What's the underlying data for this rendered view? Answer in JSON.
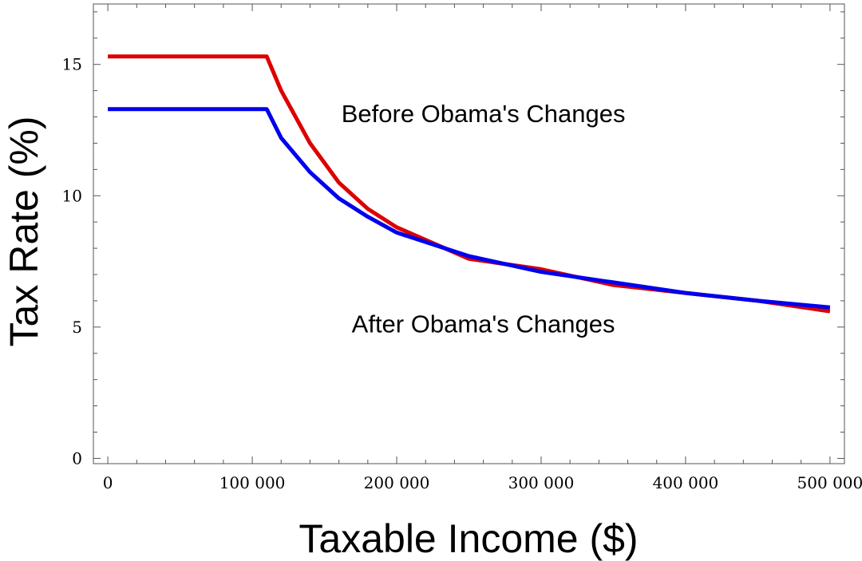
{
  "chart_data": {
    "type": "line",
    "xlabel": "Taxable Income ($)",
    "ylabel": "Tax Rate (%)",
    "xlim": [
      -10000,
      510000
    ],
    "ylim": [
      -0.2,
      17.3
    ],
    "x_ticks": [
      0,
      100000,
      200000,
      300000,
      400000,
      500000
    ],
    "x_tick_labels": [
      "0",
      "100 000",
      "200 000",
      "300 000",
      "400 000",
      "500 000"
    ],
    "y_ticks": [
      0,
      5,
      10,
      15
    ],
    "y_tick_labels": [
      "0",
      "5",
      "10",
      "15"
    ],
    "grid": false,
    "series": [
      {
        "color": "#dd0000",
        "x": [
          0,
          110000,
          120000,
          140000,
          160000,
          180000,
          200000,
          250000,
          300000,
          350000,
          400000,
          450000,
          500000
        ],
        "y": [
          15.3,
          15.3,
          14.0,
          12.0,
          10.5,
          9.5,
          8.8,
          7.6,
          7.2,
          6.6,
          6.3,
          6.0,
          5.6
        ]
      },
      {
        "color": "#0000ee",
        "x": [
          0,
          110000,
          120000,
          140000,
          160000,
          180000,
          200000,
          250000,
          300000,
          350000,
          400000,
          450000,
          500000
        ],
        "y": [
          13.3,
          13.3,
          12.2,
          10.9,
          9.9,
          9.2,
          8.6,
          7.7,
          7.1,
          6.7,
          6.3,
          6.0,
          5.75
        ]
      }
    ],
    "annotations": [
      {
        "text": "Before Obama's Changes",
        "x": 260000,
        "y": 12.8
      },
      {
        "text": "After Obama's Changes",
        "x": 260000,
        "y": 4.8
      }
    ]
  }
}
